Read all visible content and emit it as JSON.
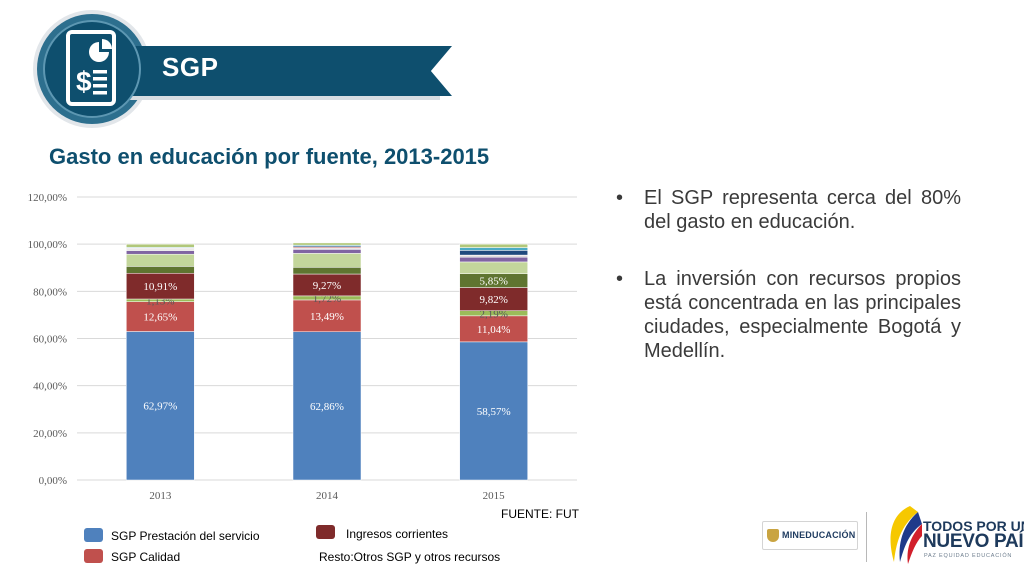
{
  "header": {
    "section_title": "SGP",
    "badge_icon": "invoice-dollar-pie-icon"
  },
  "chart_data": {
    "type": "bar",
    "stacked": true,
    "title": "Gasto en educación por fuente, 2013-2015",
    "categories": [
      "2013",
      "2014",
      "2015"
    ],
    "xlabel": "",
    "ylabel": "",
    "ylim": [
      0,
      120
    ],
    "yticks": [
      "0,00%",
      "20,00%",
      "40,00%",
      "60,00%",
      "80,00%",
      "100,00%",
      "120,00%"
    ],
    "grid": true,
    "series": [
      {
        "name": "SGP Prestación del servicio",
        "color": "#4f81bd",
        "values": [
          62.97,
          62.86,
          58.57
        ],
        "labels": [
          "62,97%",
          "62,86%",
          "58,57%"
        ]
      },
      {
        "name": "SGP Calidad",
        "color": "#c0504d",
        "values": [
          12.65,
          13.49,
          11.04
        ],
        "labels": [
          "12,65%",
          "13,49%",
          "11,04%"
        ]
      },
      {
        "color": "#9bbb59",
        "values": [
          1.13,
          1.72,
          2.19
        ],
        "labels": [
          "1,13%",
          "1,72%",
          "2,19%"
        ]
      },
      {
        "name": "Ingresos corrientes",
        "color": "#7f2b2b",
        "values": [
          10.91,
          9.27,
          9.82
        ],
        "labels": [
          "10,91%",
          "9,27%",
          "9,82%"
        ]
      },
      {
        "color": "#5f7530",
        "values": [
          2.93,
          2.85,
          5.85
        ],
        "labels": [
          "",
          "",
          "5,85%"
        ]
      },
      {
        "color": "#c3d69b",
        "values": [
          5.15,
          5.9,
          5.0
        ],
        "labels": [
          "",
          "",
          ""
        ]
      },
      {
        "color": "#8064a2",
        "values": [
          1.5,
          1.7,
          2.0
        ],
        "labels": [
          "",
          "",
          ""
        ]
      },
      {
        "color": "#d8d8d8",
        "values": [
          0.6,
          0.5,
          0.6
        ],
        "labels": [
          "",
          "",
          ""
        ]
      },
      {
        "color": "#c0504d",
        "values": [
          0.3,
          0.4,
          0.3
        ],
        "labels": [
          "",
          "",
          ""
        ]
      },
      {
        "color": "#1f497d",
        "values": [
          0.2,
          0.5,
          2.0
        ],
        "labels": [
          "",
          "",
          ""
        ]
      },
      {
        "color": "#4bacc6",
        "values": [
          0.3,
          0.4,
          1.2
        ],
        "labels": [
          "",
          "",
          ""
        ]
      },
      {
        "color": "#b1c77a",
        "values": [
          1.36,
          0.94,
          1.43
        ],
        "labels": [
          "",
          "",
          ""
        ]
      }
    ]
  },
  "legend": {
    "prestacion": "SGP Prestación del servicio",
    "calidad": "SGP Calidad",
    "ingresos": "Ingresos corrientes",
    "resto": "Resto:Otros SGP y otros recursos",
    "colors": {
      "prestacion": "#4f81bd",
      "calidad": "#c0504d",
      "ingresos": "#7f2b2b"
    }
  },
  "source": "FUENTE: FUT",
  "bullets": [
    "El SGP representa cerca del 80% del gasto en educación.",
    "La inversión con recursos propios está concentrada en las principales ciudades, especialmente Bogotá y Medellín."
  ],
  "logos": {
    "mineducacion": "MINEDUCACIÓN",
    "tpun_line1": "TODOS POR UN",
    "tpun_line2": "NUEVO PAÍS",
    "tpun_line3": "PAZ  EQUIDAD  EDUCACIÓN"
  }
}
